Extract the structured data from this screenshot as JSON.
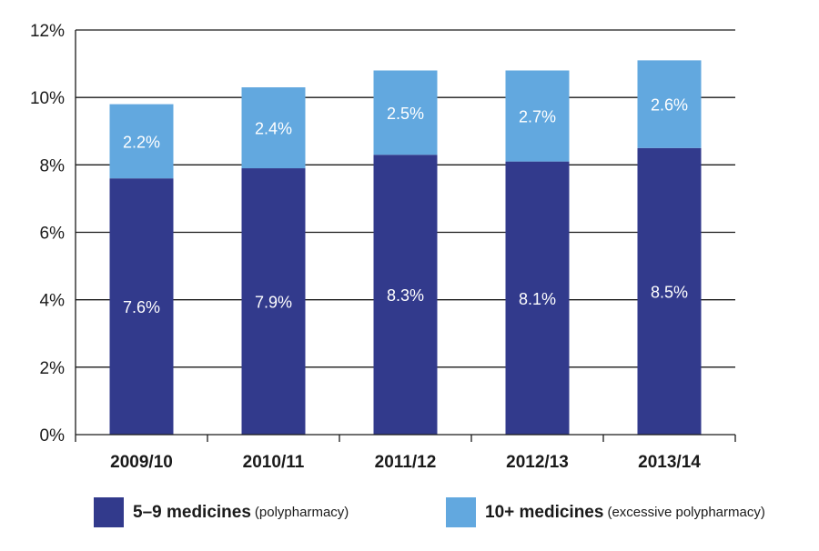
{
  "chart_data": {
    "type": "bar",
    "stacked": true,
    "categories": [
      "2009/10",
      "2010/11",
      "2011/12",
      "2012/13",
      "2013/14"
    ],
    "series": [
      {
        "name": "5–9 medicines",
        "note": "(polypharmacy)",
        "color": "#323a8c",
        "values": [
          7.6,
          7.9,
          8.3,
          8.1,
          8.5
        ],
        "labels": [
          "7.6%",
          "7.9%",
          "8.3%",
          "8.1%",
          "8.5%"
        ]
      },
      {
        "name": "10+ medicines",
        "note": "(excessive polypharmacy)",
        "color": "#62a8df",
        "values": [
          2.2,
          2.4,
          2.5,
          2.7,
          2.6
        ],
        "labels": [
          "2.2%",
          "2.4%",
          "2.5%",
          "2.7%",
          "2.6%"
        ]
      }
    ],
    "ylim": [
      0,
      12
    ],
    "yticks": [
      0,
      2,
      4,
      6,
      8,
      10,
      12
    ],
    "ytick_labels": [
      "0%",
      "2%",
      "4%",
      "6%",
      "8%",
      "10%",
      "12%"
    ],
    "grid": true,
    "legend_position": "bottom"
  }
}
